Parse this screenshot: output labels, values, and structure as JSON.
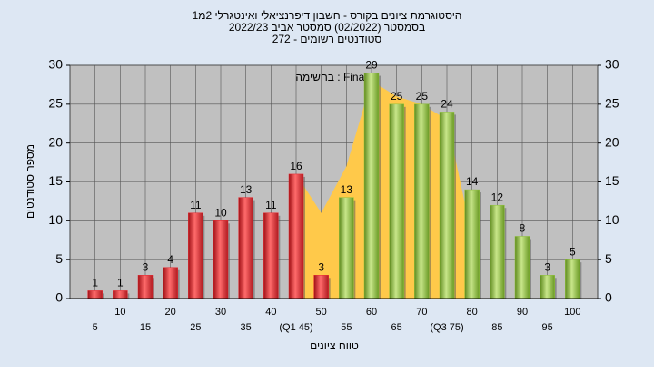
{
  "chart_data": {
    "type": "bar",
    "title": "היסטוגרמת ציונים בקורס - חשבון דיפרנציאלי ואינטגרלי 2מ1",
    "subtitle": "בסמסטר  (02/2022)  סמסטר אביב 2022/23",
    "subtitle2": "סטודנטים רשומים - 272",
    "annotation": "בחשימה : Final_",
    "x_label": "טווח ציונים",
    "y_label": "מספר סטודנטים",
    "categories": [
      "5",
      "10",
      "15",
      "20",
      "25",
      "30",
      "35",
      "40",
      "(Q1 45)",
      "50",
      "55",
      "60",
      "65",
      "70",
      "(Q3 75)",
      "80",
      "85",
      "90",
      "95",
      "100"
    ],
    "series": [
      {
        "type": "area",
        "color": "#ffc94a",
        "values": [
          null,
          null,
          null,
          null,
          null,
          null,
          null,
          null,
          16,
          11,
          17,
          28,
          26,
          25,
          23,
          8,
          null,
          null,
          null,
          null
        ]
      },
      {
        "type": "bar",
        "colors": [
          "#e8262e",
          "#e8262e",
          "#e8262e",
          "#e8262e",
          "#e8262e",
          "#e8262e",
          "#e8262e",
          "#e8262e",
          "#e8262e",
          "#e8262e",
          "#8fc23a",
          "#8fc23a",
          "#8fc23a",
          "#8fc23a",
          "#8fc23a",
          "#8fc23a",
          "#8fc23a",
          "#8fc23a",
          "#8fc23a",
          "#8fc23a"
        ],
        "values": [
          1,
          1,
          3,
          4,
          11,
          10,
          13,
          11,
          16,
          3,
          13,
          29,
          25,
          25,
          24,
          14,
          12,
          8,
          3,
          5
        ]
      }
    ],
    "ylim": [
      0,
      30
    ],
    "yticks": [
      0,
      5,
      10,
      15,
      20,
      25,
      30
    ],
    "y2lim": [
      0,
      30
    ],
    "y2ticks": [
      0,
      5,
      10,
      15,
      20,
      25,
      30
    ],
    "grid": true
  }
}
